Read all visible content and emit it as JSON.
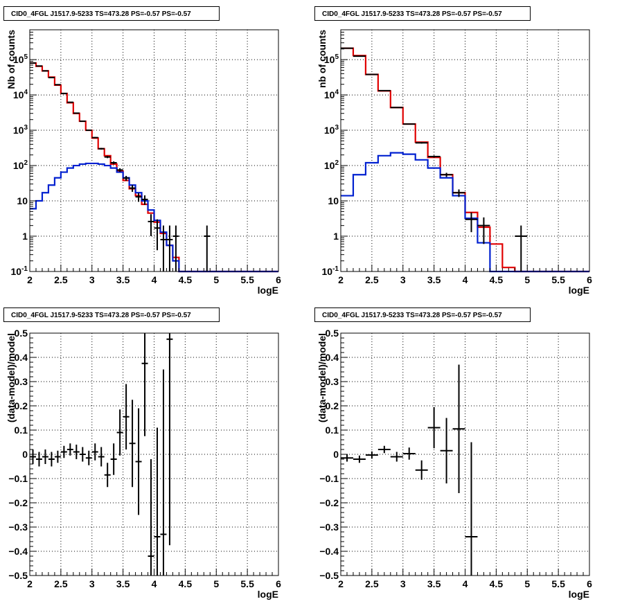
{
  "title": "CID0_4FGL J1517.9-5233 TS=473.28 PS=-0.57 PS=-0.57",
  "colors": {
    "model_total": "#e00000",
    "model_source": "#0020d0",
    "data": "#000000",
    "grid": "#000000"
  },
  "chart_data": [
    {
      "id": "counts-fine",
      "type": "histogram",
      "scale": "log",
      "title": "CID0_4FGL J1517.9-5233 TS=473.28 PS=-0.57 PS=-0.57",
      "xlabel": "logE",
      "ylabel": "Nb of counts",
      "xlim": [
        2,
        6
      ],
      "ylim": [
        0.1,
        700000
      ],
      "grid": true,
      "x_ticks": [
        "2",
        "2.5",
        "3",
        "3.5",
        "4",
        "4.5",
        "5",
        "5.5",
        "6"
      ],
      "y_ticks": [
        "10^-1",
        "1",
        "10",
        "10^2",
        "10^3",
        "10^4",
        "10^5"
      ],
      "bin_width": 0.1,
      "bin_start": 2.0,
      "series": [
        {
          "kind": "model_total",
          "values": [
            80000,
            65000,
            48000,
            32000,
            19000,
            11000,
            6000,
            3000,
            1800,
            1000,
            600,
            300,
            190,
            110,
            70,
            38,
            22,
            14,
            8,
            4.5,
            2.5,
            1.2,
            0.55,
            0.25,
            0.1,
            0.1,
            0.1,
            0.1,
            0.1,
            0.1,
            0.1,
            0.1,
            0.1,
            0.1,
            0.1,
            0.1,
            0.1,
            0.1,
            0.1,
            0.1
          ]
        },
        {
          "kind": "model_source",
          "values": [
            6,
            10,
            17,
            28,
            45,
            65,
            85,
            100,
            110,
            115,
            115,
            110,
            100,
            85,
            65,
            45,
            28,
            17,
            10,
            5.5,
            2.8,
            1.3,
            0.55,
            0.2,
            0.1,
            0.1,
            0.1,
            0.1,
            0.1,
            0.1,
            0.1,
            0.1,
            0.1,
            0.1,
            0.1,
            0.1,
            0.1,
            0.1,
            0.1,
            0.1
          ]
        }
      ],
      "points": [
        {
          "x": 2.05,
          "y": 80000,
          "yerr_lo": 300,
          "yerr_hi": 300
        },
        {
          "x": 2.15,
          "y": 66000,
          "yerr_lo": 260,
          "yerr_hi": 260
        },
        {
          "x": 2.25,
          "y": 48000,
          "yerr_lo": 220,
          "yerr_hi": 220
        },
        {
          "x": 2.35,
          "y": 31000,
          "yerr_lo": 180,
          "yerr_hi": 180
        },
        {
          "x": 2.45,
          "y": 19500,
          "yerr_lo": 140,
          "yerr_hi": 140
        },
        {
          "x": 2.55,
          "y": 11000,
          "yerr_lo": 105,
          "yerr_hi": 105
        },
        {
          "x": 2.65,
          "y": 6200,
          "yerr_lo": 80,
          "yerr_hi": 80
        },
        {
          "x": 2.75,
          "y": 3050,
          "yerr_lo": 55,
          "yerr_hi": 55
        },
        {
          "x": 2.85,
          "y": 1800,
          "yerr_lo": 42,
          "yerr_hi": 42
        },
        {
          "x": 2.95,
          "y": 1000,
          "yerr_lo": 32,
          "yerr_hi": 32
        },
        {
          "x": 3.05,
          "y": 620,
          "yerr_lo": 25,
          "yerr_hi": 25
        },
        {
          "x": 3.15,
          "y": 300,
          "yerr_lo": 17,
          "yerr_hi": 17
        },
        {
          "x": 3.25,
          "y": 175,
          "yerr_lo": 13,
          "yerr_hi": 13
        },
        {
          "x": 3.35,
          "y": 120,
          "yerr_lo": 11,
          "yerr_hi": 11
        },
        {
          "x": 3.45,
          "y": 75,
          "yerr_lo": 9,
          "yerr_hi": 9
        },
        {
          "x": 3.55,
          "y": 44,
          "yerr_lo": 7,
          "yerr_hi": 7
        },
        {
          "x": 3.65,
          "y": 23,
          "yerr_lo": 5,
          "yerr_hi": 5
        },
        {
          "x": 3.75,
          "y": 13,
          "yerr_lo": 3.6,
          "yerr_hi": 3.6
        },
        {
          "x": 3.85,
          "y": 11,
          "yerr_lo": 3.3,
          "yerr_hi": 3.3
        },
        {
          "x": 3.95,
          "y": 2.6,
          "yerr_lo": 1.6,
          "yerr_hi": 1.6
        },
        {
          "x": 4.05,
          "y": 1.7,
          "yerr_lo": 1.3,
          "yerr_hi": 1.3
        },
        {
          "x": 4.15,
          "y": 0.8,
          "yerr_lo": 0.75,
          "yerr_hi": 1.2
        },
        {
          "x": 4.25,
          "y": 0.8,
          "yerr_lo": 0.75,
          "yerr_hi": 1.2
        },
        {
          "x": 4.35,
          "y": 1.0,
          "yerr_lo": 0.9,
          "yerr_hi": 1.0
        },
        {
          "x": 4.85,
          "y": 1.0,
          "yerr_lo": 0.9,
          "yerr_hi": 1.0
        }
      ]
    },
    {
      "id": "counts-coarse",
      "type": "histogram",
      "scale": "log",
      "title": "CID0_4FGL J1517.9-5233 TS=473.28 PS=-0.57 PS=-0.57",
      "xlabel": "logE",
      "ylabel": "nb of counts",
      "xlim": [
        2,
        6
      ],
      "ylim": [
        0.1,
        700000
      ],
      "grid": true,
      "x_ticks": [
        "2",
        "2.5",
        "3",
        "3.5",
        "4",
        "4.5",
        "5",
        "5.5",
        "6"
      ],
      "y_ticks": [
        "10^-1",
        "1",
        "10",
        "10^2",
        "10^3",
        "10^4",
        "10^5"
      ],
      "bin_width": 0.2,
      "bin_start": 2.0,
      "series": [
        {
          "kind": "model_total",
          "values": [
            210000,
            130000,
            38000,
            13000,
            4400,
            1500,
            460,
            170,
            55,
            17,
            4.7,
            1.8,
            0.6,
            0.13,
            0.1,
            0.1,
            0.1,
            0.1,
            0.1,
            0.1
          ]
        },
        {
          "kind": "model_source",
          "values": [
            14,
            55,
            120,
            190,
            230,
            210,
            145,
            85,
            45,
            14,
            3.2,
            0.65,
            0.1,
            0.1,
            0.1,
            0.1,
            0.1,
            0.1,
            0.1,
            0.1
          ]
        }
      ],
      "points": [
        {
          "x": 2.1,
          "y": 210000,
          "yerr_lo": 460,
          "yerr_hi": 460
        },
        {
          "x": 2.3,
          "y": 125000,
          "yerr_lo": 350,
          "yerr_hi": 350
        },
        {
          "x": 2.5,
          "y": 38000,
          "yerr_lo": 195,
          "yerr_hi": 195
        },
        {
          "x": 2.7,
          "y": 13200,
          "yerr_lo": 115,
          "yerr_hi": 115
        },
        {
          "x": 2.9,
          "y": 4400,
          "yerr_lo": 66,
          "yerr_hi": 66
        },
        {
          "x": 3.1,
          "y": 1500,
          "yerr_lo": 39,
          "yerr_hi": 39
        },
        {
          "x": 3.3,
          "y": 440,
          "yerr_lo": 21,
          "yerr_hi": 21
        },
        {
          "x": 3.5,
          "y": 180,
          "yerr_lo": 13,
          "yerr_hi": 13
        },
        {
          "x": 3.7,
          "y": 55,
          "yerr_lo": 7.4,
          "yerr_hi": 7.4
        },
        {
          "x": 3.9,
          "y": 17,
          "yerr_lo": 4.1,
          "yerr_hi": 4.1
        },
        {
          "x": 4.1,
          "y": 3,
          "yerr_lo": 1.7,
          "yerr_hi": 1.7
        },
        {
          "x": 4.3,
          "y": 2,
          "yerr_lo": 1.4,
          "yerr_hi": 1.4
        },
        {
          "x": 4.9,
          "y": 1,
          "yerr_lo": 0.9,
          "yerr_hi": 1.0
        }
      ]
    },
    {
      "id": "residuals-fine",
      "type": "scatter",
      "scale": "linear",
      "title": "CID0_4FGL J1517.9-5233 TS=473.28 PS=-0.57 PS=-0.57",
      "xlabel": "logE",
      "ylabel": "(data-model)/model",
      "xlim": [
        2,
        6
      ],
      "ylim": [
        -0.5,
        0.5
      ],
      "grid": true,
      "x_ticks": [
        "2",
        "2.5",
        "3",
        "3.5",
        "4",
        "4.5",
        "5",
        "5.5",
        "6"
      ],
      "y_ticks": [
        "−0.5",
        "−0.4",
        "−0.3",
        "−0.2",
        "−0.1",
        "0",
        "0.1",
        "0.2",
        "0.3",
        "0.4",
        "0.5"
      ],
      "xerr": 0.05,
      "points": [
        {
          "x": 2.05,
          "y": -0.01,
          "yerr": 0.03
        },
        {
          "x": 2.15,
          "y": -0.02,
          "yerr": 0.03
        },
        {
          "x": 2.25,
          "y": -0.01,
          "yerr": 0.03
        },
        {
          "x": 2.35,
          "y": -0.02,
          "yerr": 0.03
        },
        {
          "x": 2.45,
          "y": -0.01,
          "yerr": 0.025
        },
        {
          "x": 2.55,
          "y": 0.01,
          "yerr": 0.025
        },
        {
          "x": 2.65,
          "y": 0.02,
          "yerr": 0.025
        },
        {
          "x": 2.75,
          "y": 0.01,
          "yerr": 0.03
        },
        {
          "x": 2.85,
          "y": 0.0,
          "yerr": 0.03
        },
        {
          "x": 2.95,
          "y": -0.015,
          "yerr": 0.03
        },
        {
          "x": 3.05,
          "y": 0.01,
          "yerr": 0.035
        },
        {
          "x": 3.15,
          "y": -0.01,
          "yerr": 0.04
        },
        {
          "x": 3.25,
          "y": -0.085,
          "yerr": 0.05
        },
        {
          "x": 3.35,
          "y": -0.02,
          "yerr": 0.065
        },
        {
          "x": 3.45,
          "y": 0.09,
          "yerr": 0.095
        },
        {
          "x": 3.55,
          "y": 0.155,
          "yerr": 0.135
        },
        {
          "x": 3.65,
          "y": 0.045,
          "yerr": 0.18
        },
        {
          "x": 3.75,
          "y": -0.03,
          "yerr": 0.22
        },
        {
          "x": 3.85,
          "y": 0.375,
          "yerr": 0.3
        },
        {
          "x": 3.95,
          "y": -0.42,
          "yerr": 0.4
        },
        {
          "x": 4.05,
          "y": -0.34,
          "yerr": 0.45
        },
        {
          "x": 4.15,
          "y": -0.33,
          "yerr": 0.68
        },
        {
          "x": 4.25,
          "y": 0.475,
          "yerr": 0.85
        }
      ]
    },
    {
      "id": "residuals-coarse",
      "type": "scatter",
      "scale": "linear",
      "title": "CID0_4FGL J1517.9-5233 TS=473.28 PS=-0.57 PS=-0.57",
      "xlabel": "logE",
      "ylabel": "(data-model)/model",
      "xlim": [
        2,
        6
      ],
      "ylim": [
        -0.5,
        0.5
      ],
      "grid": true,
      "x_ticks": [
        "2",
        "2.5",
        "3",
        "3.5",
        "4",
        "4.5",
        "5",
        "5.5",
        "6"
      ],
      "y_ticks": [
        "−0.5",
        "−0.4",
        "−0.3",
        "−0.2",
        "−0.1",
        "0",
        "0.1",
        "0.2",
        "0.3",
        "0.4",
        "0.5"
      ],
      "xerr": 0.1,
      "points": [
        {
          "x": 2.1,
          "y": -0.015,
          "yerr": 0.015
        },
        {
          "x": 2.3,
          "y": -0.02,
          "yerr": 0.015
        },
        {
          "x": 2.5,
          "y": -0.003,
          "yerr": 0.015
        },
        {
          "x": 2.7,
          "y": 0.02,
          "yerr": 0.015
        },
        {
          "x": 2.9,
          "y": -0.01,
          "yerr": 0.02
        },
        {
          "x": 3.1,
          "y": 0.003,
          "yerr": 0.025
        },
        {
          "x": 3.3,
          "y": -0.065,
          "yerr": 0.04
        },
        {
          "x": 3.5,
          "y": 0.11,
          "yerr": 0.085
        },
        {
          "x": 3.7,
          "y": 0.015,
          "yerr": 0.135
        },
        {
          "x": 3.9,
          "y": 0.105,
          "yerr": 0.265
        },
        {
          "x": 4.1,
          "y": -0.34,
          "yerr": 0.39
        }
      ]
    }
  ]
}
